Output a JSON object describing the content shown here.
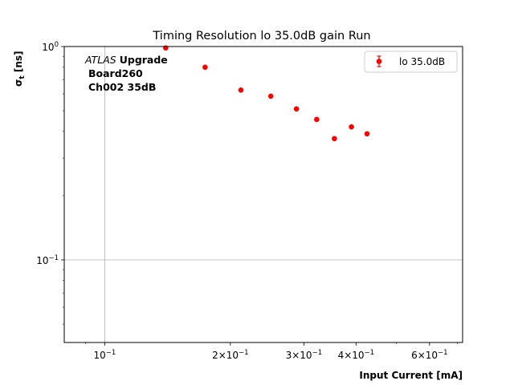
{
  "chart_data": {
    "type": "scatter",
    "title": "Timing Resolution lo 35.0dB gain Run",
    "xlabel": "Input Current [mA]",
    "ylabel_main": "σ",
    "ylabel_sub": "t",
    "ylabel_unit": "[ns]",
    "x_scale": "log",
    "y_scale": "log",
    "xlim": [
      0.08,
      0.72
    ],
    "ylim": [
      0.041,
      1.0
    ],
    "grid": true,
    "legend_position": "top-right",
    "annotation": {
      "italic": "ATLAS",
      "bold": "Upgrade",
      "line2": "Board260",
      "line3": "Ch002 35dB"
    },
    "x_ticks": [
      {
        "value": 0.1,
        "base": "10",
        "exp": "−1"
      },
      {
        "value": 0.2,
        "base": "2×10",
        "exp": "−1"
      },
      {
        "value": 0.3,
        "base": "3×10",
        "exp": "−1"
      },
      {
        "value": 0.4,
        "base": "4×10",
        "exp": "−1"
      },
      {
        "value": 0.6,
        "base": "6×10",
        "exp": "−1"
      }
    ],
    "x_minor_ticks": [
      0.09,
      0.5,
      0.7
    ],
    "y_ticks": [
      {
        "value": 0.1,
        "base": "10",
        "exp": "−1"
      },
      {
        "value": 1.0,
        "base": "10",
        "exp": "0"
      }
    ],
    "y_minor_ticks": [
      0.05,
      0.06,
      0.07,
      0.08,
      0.09,
      0.2,
      0.3,
      0.4,
      0.5,
      0.6,
      0.7,
      0.8,
      0.9
    ],
    "series": [
      {
        "name": "lo 35.0dB",
        "color": "#ff0000",
        "x": [
          0.14,
          0.174,
          0.212,
          0.25,
          0.288,
          0.322,
          0.355,
          0.39,
          0.425
        ],
        "y": [
          0.985,
          0.8,
          0.625,
          0.585,
          0.51,
          0.455,
          0.37,
          0.42,
          0.39
        ]
      }
    ]
  }
}
